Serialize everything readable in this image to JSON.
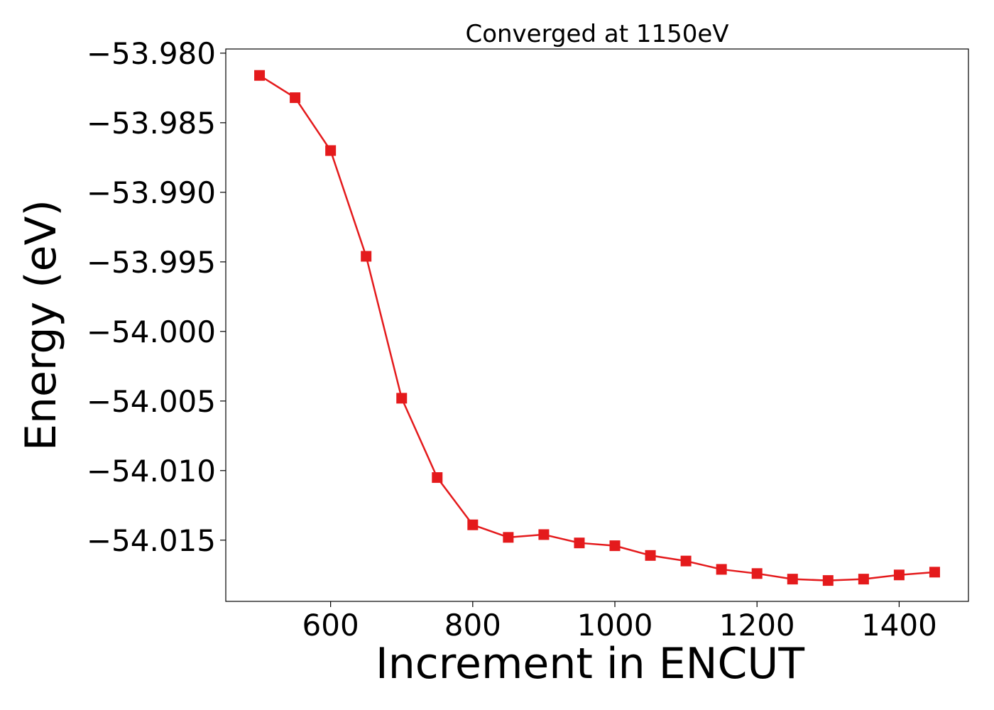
{
  "chart_data": {
    "type": "line",
    "title": "Converged at 1150eV",
    "xlabel": "Increment in ENCUT",
    "ylabel": "Energy (eV)",
    "xlim": [
      452.5,
      1497.5
    ],
    "ylim": [
      -54.0194,
      -53.9797
    ],
    "x_ticks": [
      600,
      800,
      1000,
      1200,
      1400
    ],
    "x_tick_labels": [
      "600",
      "800",
      "1000",
      "1200",
      "1400"
    ],
    "y_ticks": [
      -53.98,
      -53.985,
      -53.99,
      -53.995,
      -54.0,
      -54.005,
      -54.01,
      -54.015
    ],
    "y_tick_labels": [
      "−53.980",
      "−53.985",
      "−53.990",
      "−53.995",
      "−54.000",
      "−54.005",
      "−54.010",
      "−54.015"
    ],
    "grid": false,
    "legend": "none",
    "series": [
      {
        "color": "#e41a1c",
        "marker": "square",
        "x": [
          500,
          550,
          600,
          650,
          700,
          750,
          800,
          850,
          900,
          950,
          1000,
          1050,
          1100,
          1150,
          1200,
          1250,
          1300,
          1350,
          1400,
          1450
        ],
        "y": [
          -53.9816,
          -53.9832,
          -53.987,
          -53.9946,
          -54.0048,
          -54.0105,
          -54.0139,
          -54.0148,
          -54.0146,
          -54.0152,
          -54.0154,
          -54.0161,
          -54.0165,
          -54.0171,
          -54.0174,
          -54.0178,
          -54.0179,
          -54.0178,
          -54.0175,
          -54.0173
        ]
      }
    ]
  }
}
